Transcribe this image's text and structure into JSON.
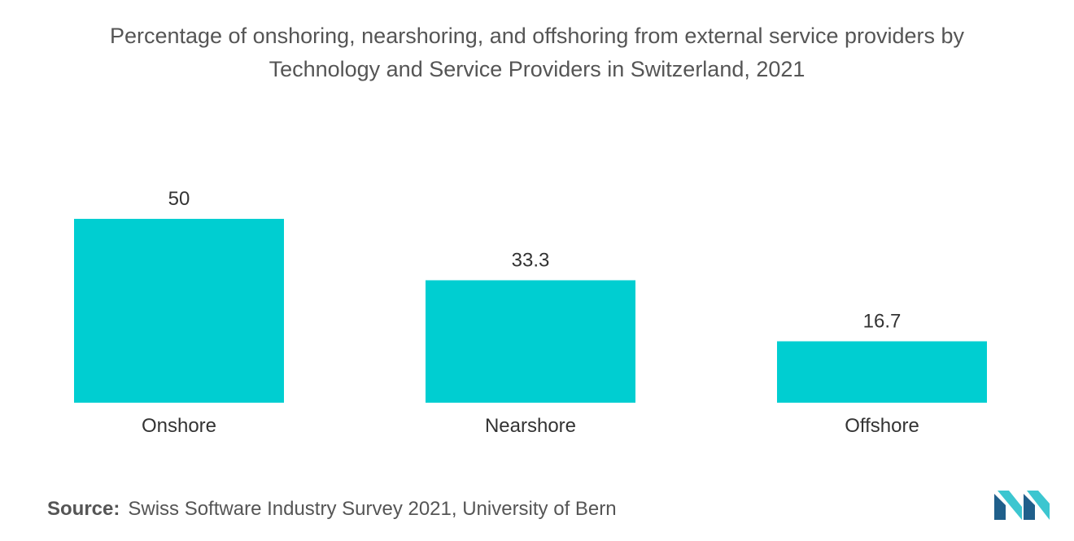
{
  "title_line1": "Percentage of onshoring, nearshoring, and offshoring from external service providers by",
  "title_line2": "Technology and Service Providers in Switzerland, 2021",
  "source_label": "Source:",
  "source_text": "Swiss Software Industry Survey 2021, University of Bern",
  "logo_icon": "mordor-intelligence-logo-icon",
  "colors": {
    "bar": "#00CED1",
    "logo_dark": "#1f5f8b",
    "logo_light": "#3cc6d0"
  },
  "chart_data": {
    "type": "bar",
    "title": "Percentage of onshoring, nearshoring, and offshoring from external service providers by Technology and Service Providers in Switzerland, 2021",
    "categories": [
      "Onshore",
      "Nearshore",
      "Offshore"
    ],
    "values": [
      50,
      33.3,
      16.7
    ],
    "value_labels": [
      "50",
      "33.3",
      "16.7"
    ],
    "xlabel": "",
    "ylabel": "",
    "ylim": [
      0,
      50
    ],
    "grid": false,
    "legend": "none"
  }
}
